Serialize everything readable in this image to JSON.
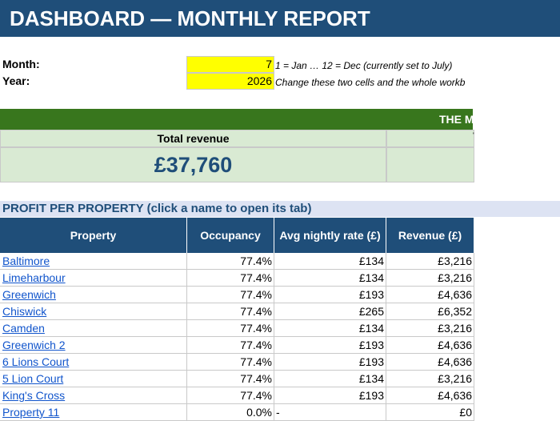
{
  "header": {
    "title": "DASHBOARD — MONTHLY REPORT"
  },
  "inputs": {
    "month_label": "Month:",
    "month_value": "7",
    "month_note": "1 = Jan … 12 = Dec   (currently set to July)",
    "year_label": "Year:",
    "year_value": "2026",
    "year_note": "Change these two cells and the whole workb"
  },
  "banner": {
    "text": "THE M"
  },
  "kpi": {
    "label": "Total revenue",
    "value": "£37,760",
    "side_mark": "'"
  },
  "section": {
    "heading": "PROFIT PER PROPERTY  (click a name to open its tab)"
  },
  "table": {
    "headers": [
      "Property",
      "Occupancy",
      "Avg nightly rate (£)",
      "Revenue (£)"
    ],
    "rows": [
      {
        "property": "Baltimore",
        "occupancy": "77.4%",
        "rate": "£134",
        "revenue": "£3,216"
      },
      {
        "property": "Limeharbour",
        "occupancy": "77.4%",
        "rate": "£134",
        "revenue": "£3,216"
      },
      {
        "property": "Greenwich",
        "occupancy": "77.4%",
        "rate": "£193",
        "revenue": "£4,636"
      },
      {
        "property": "Chiswick",
        "occupancy": "77.4%",
        "rate": "£265",
        "revenue": "£6,352"
      },
      {
        "property": "Camden",
        "occupancy": "77.4%",
        "rate": "£134",
        "revenue": "£3,216"
      },
      {
        "property": "Greenwich 2",
        "occupancy": "77.4%",
        "rate": "£193",
        "revenue": "£4,636"
      },
      {
        "property": "6 Lions Court",
        "occupancy": "77.4%",
        "rate": "£193",
        "revenue": "£4,636"
      },
      {
        "property": "5 Lion Court",
        "occupancy": "77.4%",
        "rate": "£134",
        "revenue": "£3,216"
      },
      {
        "property": "King's Cross",
        "occupancy": "77.4%",
        "rate": "£193",
        "revenue": "£4,636"
      },
      {
        "property": "Property 11",
        "occupancy": "0.0%",
        "rate": "-",
        "revenue": "£0"
      }
    ]
  }
}
